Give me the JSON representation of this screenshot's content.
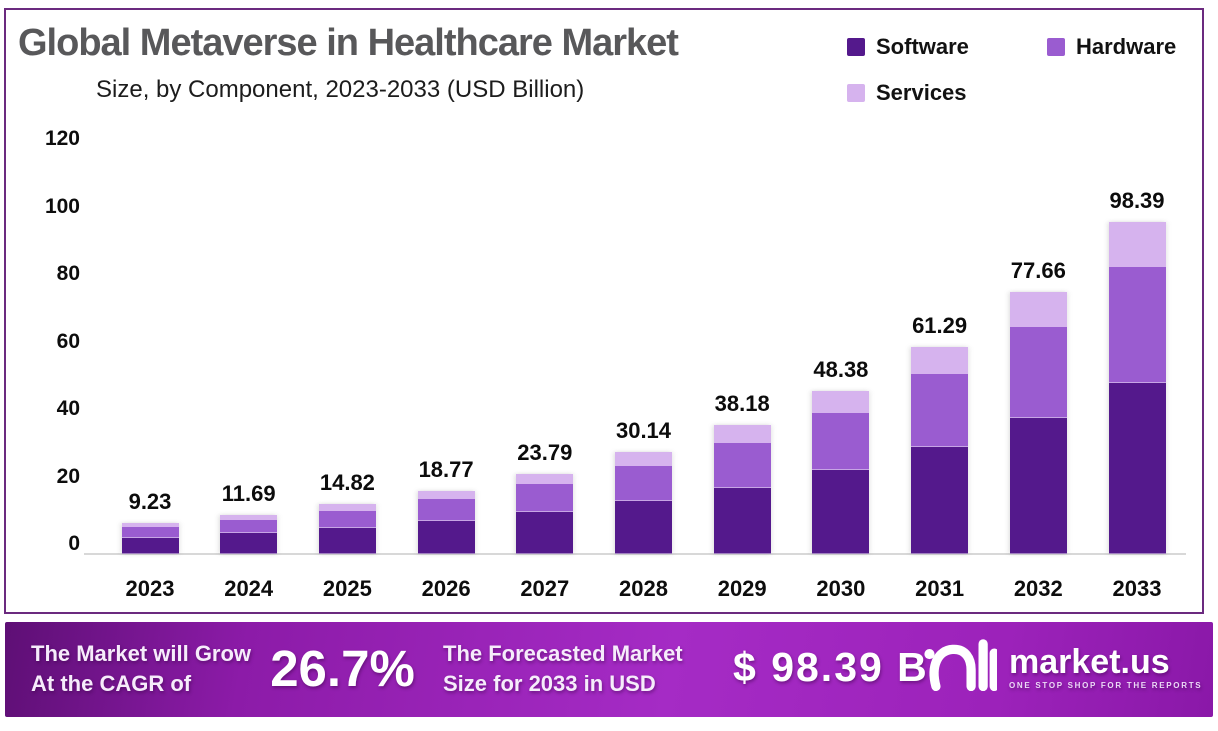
{
  "header": {
    "title": "Global Metaverse in Healthcare Market",
    "subtitle": "Size, by Component, 2023-2033 (USD Billion)"
  },
  "legend": [
    {
      "label": "Software",
      "color": "#54198c"
    },
    {
      "label": "Hardware",
      "color": "#9a5cd0"
    },
    {
      "label": "Services",
      "color": "#d6b3ee"
    }
  ],
  "chart_data": {
    "type": "bar",
    "stacked": true,
    "title": "Global Metaverse in Healthcare Market Size, by Component, 2023-2033 (USD Billion)",
    "categories": [
      "2023",
      "2024",
      "2025",
      "2026",
      "2027",
      "2028",
      "2029",
      "2030",
      "2031",
      "2032",
      "2033"
    ],
    "series": [
      {
        "name": "Software",
        "color": "#54198c",
        "values": [
          4.8,
          6.1,
          7.7,
          9.8,
          12.4,
          15.6,
          19.6,
          24.8,
          31.8,
          40.3,
          50.7
        ]
      },
      {
        "name": "Hardware",
        "color": "#9a5cd0",
        "values": [
          3.2,
          4.0,
          5.1,
          6.4,
          8.2,
          10.4,
          13.4,
          17.0,
          21.5,
          26.9,
          34.3
        ]
      },
      {
        "name": "Services",
        "color": "#d6b3ee",
        "values": [
          1.2,
          1.6,
          2.0,
          2.6,
          3.2,
          4.1,
          5.2,
          6.6,
          8.0,
          10.5,
          13.4
        ]
      }
    ],
    "totals": [
      "9.23",
      "11.69",
      "14.82",
      "18.77",
      "23.79",
      "30.14",
      "38.18",
      "48.38",
      "61.29",
      "77.66",
      "98.39"
    ],
    "ylabel": "",
    "xlabel": "",
    "ylim": [
      0,
      120
    ],
    "yticks": [
      0,
      20,
      40,
      60,
      80,
      100,
      120
    ],
    "grid": false,
    "legend_position": "top-right"
  },
  "banner": {
    "grow_line1": "The Market will Grow",
    "grow_line2": "At the CAGR of",
    "cagr": "26.7%",
    "forecast_line1": "The Forecasted Market",
    "forecast_line2": "Size for 2033 in USD",
    "forecast_value": "$ 98.39 B",
    "brand": "market.us",
    "tagline": "ONE STOP SHOP FOR THE REPORTS"
  }
}
